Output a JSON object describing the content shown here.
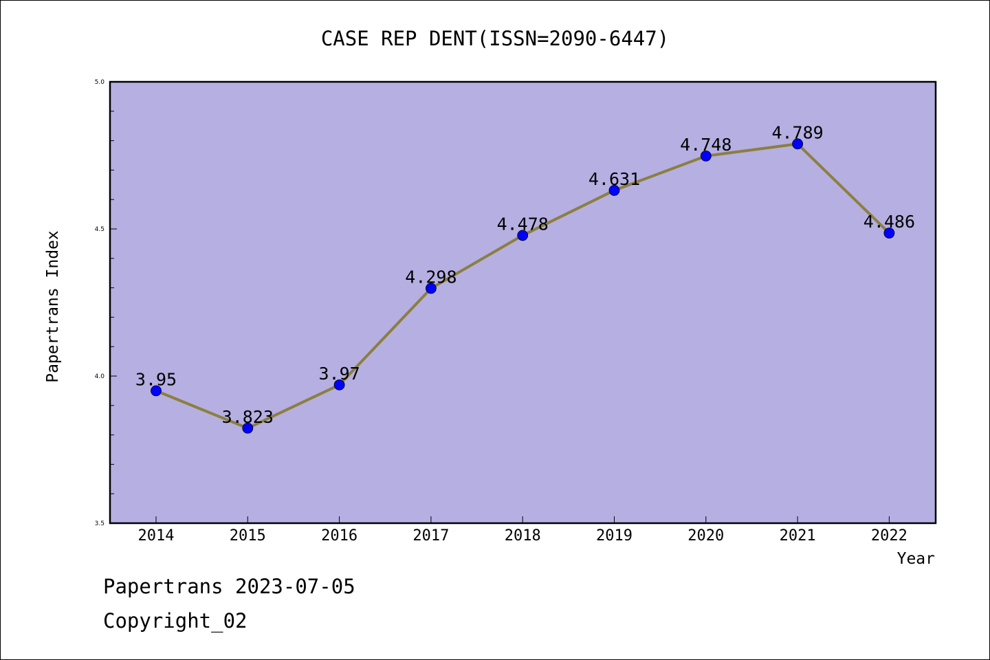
{
  "chart_data": {
    "type": "line",
    "title": "CASE REP DENT(ISSN=2090-6447)",
    "xlabel": "Year",
    "ylabel": "Papertrans Index",
    "categories": [
      "2014",
      "2015",
      "2016",
      "2017",
      "2018",
      "2019",
      "2020",
      "2021",
      "2022"
    ],
    "values": [
      3.95,
      3.823,
      3.97,
      4.298,
      4.478,
      4.631,
      4.748,
      4.789,
      4.486
    ],
    "value_labels": [
      "3.95",
      "3.823",
      "3.97",
      "4.298",
      "4.478",
      "4.631",
      "4.748",
      "4.789",
      "4.486"
    ],
    "ylim": [
      3.5,
      5.0
    ],
    "yticks": [
      "3.5",
      "4.0",
      "4.5",
      "5.0"
    ],
    "grid": false,
    "colors": {
      "plot_background": "#b5afe2",
      "line": "#8c7f3f",
      "marker": "#0000ff"
    }
  },
  "footer": {
    "line1": "Papertrans 2023-07-05",
    "line2": "Copyright_02"
  }
}
